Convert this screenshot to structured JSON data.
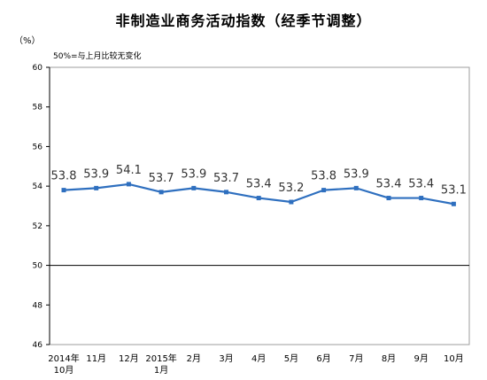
{
  "title": "非制造业商务活动指数（经季节调整）",
  "unit": "（%）",
  "reference_note": "50%=与上月比较无变化",
  "colors": {
    "line": "#2e6fbf",
    "axis": "#000000",
    "frame": "#9e9e9e"
  },
  "chart_data": {
    "type": "line",
    "title": "非制造业商务活动指数（经季节调整）",
    "xlabel": "",
    "ylabel": "（%）",
    "categories": [
      [
        "2014年",
        "10月"
      ],
      [
        "11月"
      ],
      [
        "12月"
      ],
      [
        "2015年",
        "1月"
      ],
      [
        "2月"
      ],
      [
        "3月"
      ],
      [
        "4月"
      ],
      [
        "5月"
      ],
      [
        "6月"
      ],
      [
        "7月"
      ],
      [
        "8月"
      ],
      [
        "9月"
      ],
      [
        "10月"
      ]
    ],
    "values": [
      53.8,
      53.9,
      54.1,
      53.7,
      53.9,
      53.7,
      53.4,
      53.2,
      53.8,
      53.9,
      53.4,
      53.4,
      53.1
    ],
    "value_labels": [
      "53.8",
      "53.9",
      "54.1",
      "53.7",
      "53.9",
      "53.7",
      "53.4",
      "53.2",
      "53.8",
      "53.9",
      "53.4",
      "53.4",
      "53.1"
    ],
    "ylim": [
      46,
      60
    ],
    "yticks": [
      46,
      48,
      50,
      52,
      54,
      56,
      58,
      60
    ],
    "reference_line": 50,
    "grid": false,
    "legend": "none"
  }
}
